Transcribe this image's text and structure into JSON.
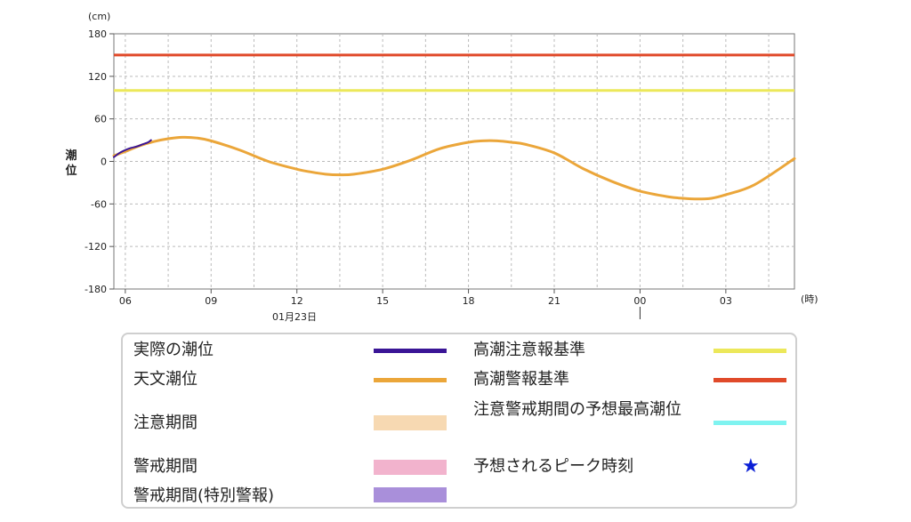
{
  "chart_data": {
    "type": "line",
    "ylabel": "潮位",
    "yunit": "(cm)",
    "xunit": "(時)",
    "ylim": [
      -180,
      180
    ],
    "yticks": [
      180,
      120,
      60,
      0,
      -60,
      -120,
      -180
    ],
    "xticks": [
      {
        "h": 6,
        "label": "06"
      },
      {
        "h": 9,
        "label": "09"
      },
      {
        "h": 12,
        "label": "12"
      },
      {
        "h": 15,
        "label": "15"
      },
      {
        "h": 18,
        "label": "18"
      },
      {
        "h": 21,
        "label": "21"
      },
      {
        "h": 24,
        "label": "00"
      },
      {
        "h": 27,
        "label": "03"
      }
    ],
    "date_label": "01月23日",
    "xlim": [
      5.6,
      29.4
    ],
    "thresholds": [
      {
        "name": "高潮警報基準",
        "value": 150,
        "color": "#e04a2a"
      },
      {
        "name": "高潮注意報基準",
        "value": 100,
        "color": "#ece85a"
      }
    ],
    "series": [
      {
        "name": "天文潮位",
        "color": "#eba63a",
        "x": [
          5.6,
          6.0,
          6.5,
          7.0,
          7.5,
          8.0,
          8.5,
          9.0,
          10.0,
          11.0,
          12.0,
          12.5,
          13.0,
          13.5,
          14.0,
          15.0,
          16.0,
          17.0,
          18.0,
          18.5,
          19.0,
          19.5,
          20.0,
          21.0,
          22.0,
          23.0,
          24.0,
          25.0,
          25.5,
          26.0,
          26.5,
          27.0,
          28.0,
          29.4
        ],
        "values": [
          8,
          14,
          22,
          28,
          32,
          34,
          33,
          29,
          16,
          0,
          -11,
          -15,
          -18,
          -19,
          -18,
          -11,
          2,
          18,
          27,
          29,
          29,
          27,
          24,
          12,
          -10,
          -28,
          -42,
          -50,
          -52,
          -53,
          -52,
          -47,
          -33,
          4
        ]
      },
      {
        "name": "実際の潮位",
        "color": "#3a1596",
        "x": [
          5.6,
          5.8,
          6.0,
          6.2,
          6.4,
          6.6,
          6.8,
          6.9
        ],
        "values": [
          6,
          12,
          16,
          19,
          21,
          24,
          27,
          30
        ]
      }
    ]
  },
  "legend": {
    "items": [
      {
        "label": "実際の潮位",
        "kind": "line",
        "color": "#3a1596"
      },
      {
        "label": "天文潮位",
        "kind": "line",
        "color": "#eba63a"
      },
      {
        "label": "注意期間",
        "kind": "box",
        "color": "#f7d9b2"
      },
      {
        "label": "警戒期間",
        "kind": "box",
        "color": "#f2b3cd"
      },
      {
        "label": "警戒期間(特別警報)",
        "kind": "box",
        "color": "#a98fda"
      },
      {
        "label": "高潮注意報基準",
        "kind": "line",
        "color": "#ece85a"
      },
      {
        "label": "高潮警報基準",
        "kind": "line",
        "color": "#e04a2a"
      },
      {
        "label": "注意警戒期間の予想最高潮位",
        "kind": "line",
        "color": "#7ff3f0"
      },
      {
        "label": "予想されるピーク時刻",
        "kind": "star",
        "color": "#0a1fd6"
      }
    ]
  }
}
